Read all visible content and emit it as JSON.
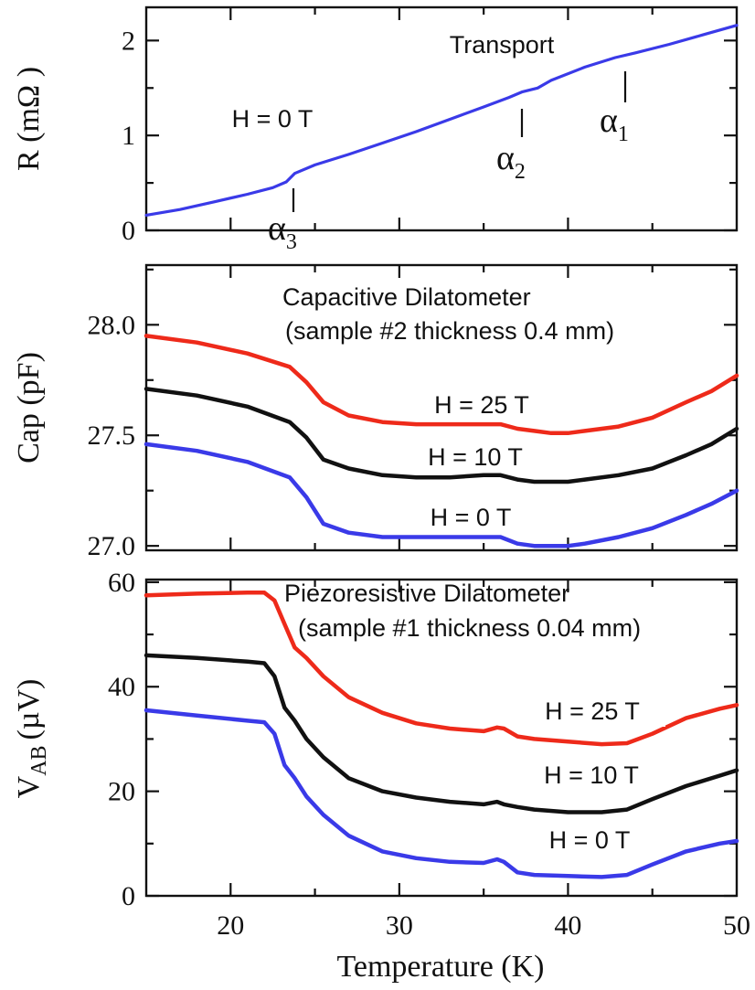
{
  "chart_data": [
    {
      "type": "line",
      "title": "Transport",
      "ylabel": "R (mΩ )",
      "xlim": [
        15,
        50
      ],
      "ylim": [
        0,
        2.35
      ],
      "yticks": [
        "0",
        "1",
        "2"
      ],
      "series": [
        {
          "color": "#3a3ae8",
          "x": [
            15,
            17,
            19,
            21,
            22.5,
            23.3,
            23.8,
            25,
            27,
            29,
            31,
            33,
            35,
            36.5,
            37.3,
            38.2,
            39,
            41,
            42.8,
            44,
            46,
            48,
            50
          ],
          "y": [
            0.16,
            0.22,
            0.3,
            0.38,
            0.45,
            0.51,
            0.6,
            0.69,
            0.8,
            0.92,
            1.04,
            1.17,
            1.3,
            1.4,
            1.46,
            1.5,
            1.58,
            1.72,
            1.82,
            1.87,
            1.96,
            2.06,
            2.16
          ]
        }
      ],
      "annotations": [
        {
          "text": "H = 0 T"
        },
        {
          "symbol": "α",
          "sub": "1",
          "x": 43.5
        },
        {
          "symbol": "α",
          "sub": "2",
          "x": 37.3
        },
        {
          "symbol": "α",
          "sub": "3",
          "x": 23.5
        }
      ]
    },
    {
      "type": "line",
      "title": "Capacitive Dilatometer",
      "subtitle": "(sample #2 thickness 0.4 mm)",
      "ylabel": "Cap (pF)",
      "xlim": [
        15,
        50
      ],
      "ylim": [
        26.98,
        28.27
      ],
      "yticks": [
        "27.0",
        "27.5",
        "28.0"
      ],
      "series": [
        {
          "name": "H = 25 T",
          "color": "#ee2a1a",
          "x": [
            15,
            18,
            21,
            23.5,
            24.5,
            25.5,
            27,
            29,
            31,
            33,
            35,
            36,
            37,
            38,
            39,
            40,
            41,
            43,
            45,
            47,
            48.5,
            50
          ],
          "y": [
            27.95,
            27.92,
            27.87,
            27.81,
            27.74,
            27.65,
            27.59,
            27.56,
            27.55,
            27.55,
            27.55,
            27.55,
            27.53,
            27.52,
            27.51,
            27.51,
            27.52,
            27.54,
            27.58,
            27.65,
            27.7,
            27.77
          ]
        },
        {
          "name": "H = 10 T",
          "color": "#111111",
          "x": [
            15,
            18,
            21,
            23.5,
            24.5,
            25.5,
            27,
            29,
            31,
            33,
            35,
            36,
            37,
            38,
            39,
            40,
            41,
            43,
            45,
            47,
            48.5,
            50
          ],
          "y": [
            27.71,
            27.68,
            27.63,
            27.56,
            27.49,
            27.39,
            27.35,
            27.32,
            27.31,
            27.31,
            27.32,
            27.32,
            27.3,
            27.29,
            27.29,
            27.29,
            27.3,
            27.32,
            27.35,
            27.41,
            27.46,
            27.53
          ]
        },
        {
          "name": "H = 0 T",
          "color": "#3a3ae8",
          "x": [
            15,
            18,
            21,
            23.5,
            24.5,
            25.5,
            27,
            29,
            31,
            33,
            35,
            36,
            37,
            38,
            39,
            40,
            41,
            43,
            45,
            47,
            48.5,
            50
          ],
          "y": [
            27.46,
            27.43,
            27.38,
            27.31,
            27.22,
            27.1,
            27.06,
            27.04,
            27.04,
            27.04,
            27.04,
            27.04,
            27.01,
            27.0,
            27.0,
            27.0,
            27.01,
            27.04,
            27.08,
            27.14,
            27.19,
            27.25
          ]
        }
      ]
    },
    {
      "type": "line",
      "title": "Piezoresistive Dilatometer",
      "subtitle": "(sample #1 thickness 0.04 mm)",
      "ylabel": "V",
      "ylabel_sub": "AB",
      "ylabel_unit": "(µV)",
      "xlabel": "Temperature (K)",
      "xlim": [
        15,
        50
      ],
      "ylim": [
        0,
        60.5
      ],
      "xticks": [
        "20",
        "30",
        "40",
        "50"
      ],
      "yticks": [
        "0",
        "20",
        "40",
        "60"
      ],
      "series": [
        {
          "name": "H = 25 T",
          "color": "#ee2a1a",
          "x": [
            15,
            18,
            21,
            22,
            22.6,
            23.2,
            23.8,
            24.5,
            25.5,
            27,
            29,
            31,
            33,
            35,
            35.8,
            36.2,
            37,
            38,
            40,
            42,
            43.5,
            45,
            47,
            49,
            50
          ],
          "y": [
            57.5,
            57.8,
            58.0,
            58.0,
            56.5,
            52.0,
            47.5,
            45.5,
            42.0,
            38.0,
            35.0,
            33.0,
            32.0,
            31.5,
            32.2,
            32.0,
            30.5,
            30.0,
            29.5,
            29.0,
            29.2,
            31.0,
            34.0,
            35.8,
            36.5
          ]
        },
        {
          "name": "H = 10 T",
          "color": "#111111",
          "x": [
            15,
            18,
            21,
            22,
            22.6,
            23.2,
            23.8,
            24.5,
            25.5,
            27,
            29,
            31,
            33,
            35,
            35.8,
            36.2,
            37,
            38,
            40,
            42,
            43.5,
            45,
            47,
            49,
            50
          ],
          "y": [
            46.0,
            45.5,
            44.8,
            44.5,
            42.0,
            36.0,
            33.5,
            30.0,
            26.5,
            22.5,
            20.0,
            18.8,
            18.0,
            17.5,
            18.0,
            17.5,
            17.0,
            16.5,
            16.0,
            16.0,
            16.5,
            18.5,
            21.0,
            23.0,
            24.0
          ]
        },
        {
          "name": "H = 0 T",
          "color": "#3a3ae8",
          "x": [
            15,
            18,
            21,
            22,
            22.6,
            23.2,
            23.8,
            24.5,
            25.5,
            27,
            29,
            31,
            33,
            35,
            35.8,
            36.2,
            37,
            38,
            40,
            42,
            43.5,
            45,
            47,
            49,
            50
          ],
          "y": [
            35.5,
            34.5,
            33.5,
            33.2,
            31.0,
            25.0,
            22.5,
            19.0,
            15.5,
            11.5,
            8.5,
            7.2,
            6.5,
            6.3,
            7.0,
            6.5,
            4.5,
            4.0,
            3.8,
            3.6,
            4.0,
            6.0,
            8.5,
            10.0,
            10.5
          ]
        }
      ]
    }
  ]
}
